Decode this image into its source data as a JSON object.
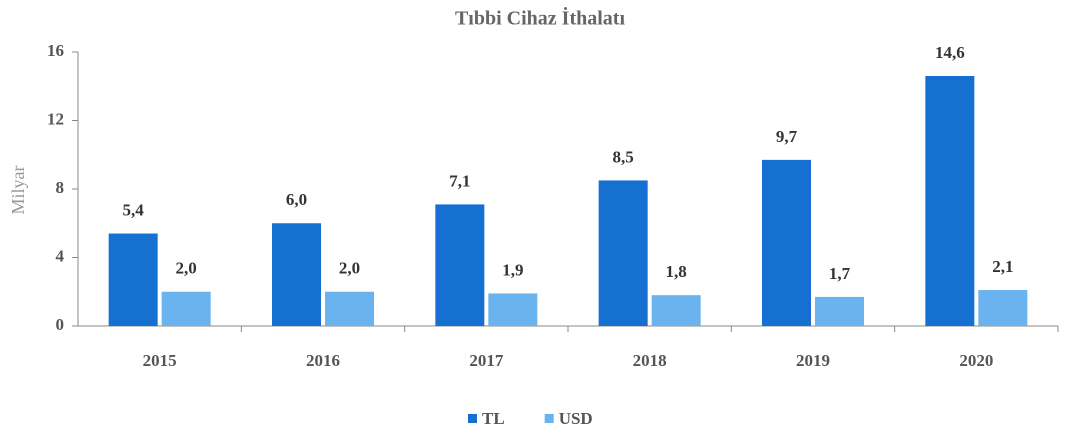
{
  "chart_data": {
    "type": "bar",
    "title": "Tıbbi Cihaz İthalatı",
    "y_label": "Milyar",
    "categories": [
      "2015",
      "2016",
      "2017",
      "2018",
      "2019",
      "2020"
    ],
    "series": [
      {
        "name": "TL",
        "color": "#1570d2",
        "values": [
          5.4,
          6.0,
          7.1,
          8.5,
          9.7,
          14.6
        ],
        "value_labels": [
          "5,4",
          "6,0",
          "7,1",
          "8,5",
          "9,7",
          "14,6"
        ]
      },
      {
        "name": "USD",
        "color": "#6ab3ef",
        "values": [
          2.0,
          2.0,
          1.9,
          1.8,
          1.7,
          2.1
        ],
        "value_labels": [
          "2,0",
          "2,0",
          "1,9",
          "1,8",
          "1,7",
          "2,1"
        ]
      }
    ],
    "ylim": [
      0,
      16
    ],
    "yticks": [
      0,
      4,
      8,
      12,
      16
    ],
    "grid": false,
    "legend": "bottom"
  }
}
